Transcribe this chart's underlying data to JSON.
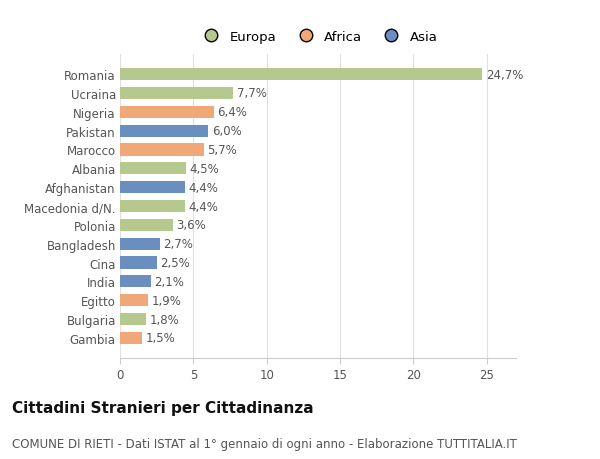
{
  "categories": [
    "Romania",
    "Ucraina",
    "Nigeria",
    "Pakistan",
    "Marocco",
    "Albania",
    "Afghanistan",
    "Macedonia d/N.",
    "Polonia",
    "Bangladesh",
    "Cina",
    "India",
    "Egitto",
    "Bulgaria",
    "Gambia"
  ],
  "values": [
    24.7,
    7.7,
    6.4,
    6.0,
    5.7,
    4.5,
    4.4,
    4.4,
    3.6,
    2.7,
    2.5,
    2.1,
    1.9,
    1.8,
    1.5
  ],
  "labels": [
    "24,7%",
    "7,7%",
    "6,4%",
    "6,0%",
    "5,7%",
    "4,5%",
    "4,4%",
    "4,4%",
    "3,6%",
    "2,7%",
    "2,5%",
    "2,1%",
    "1,9%",
    "1,8%",
    "1,5%"
  ],
  "continents": [
    "Europa",
    "Europa",
    "Africa",
    "Asia",
    "Africa",
    "Europa",
    "Asia",
    "Europa",
    "Europa",
    "Asia",
    "Asia",
    "Asia",
    "Africa",
    "Europa",
    "Africa"
  ],
  "colors": {
    "Europa": "#b5c98e",
    "Africa": "#f0a878",
    "Asia": "#6b8ec0"
  },
  "legend_order": [
    "Europa",
    "Africa",
    "Asia"
  ],
  "title": "Cittadini Stranieri per Cittadinanza",
  "subtitle": "COMUNE DI RIETI - Dati ISTAT al 1° gennaio di ogni anno - Elaborazione TUTTITALIA.IT",
  "xlim": [
    0,
    27
  ],
  "xticks": [
    0,
    5,
    10,
    15,
    20,
    25
  ],
  "background_color": "#ffffff",
  "bar_height": 0.65,
  "label_fontsize": 8.5,
  "title_fontsize": 11,
  "subtitle_fontsize": 8.5,
  "tick_fontsize": 8.5,
  "legend_fontsize": 9.5
}
